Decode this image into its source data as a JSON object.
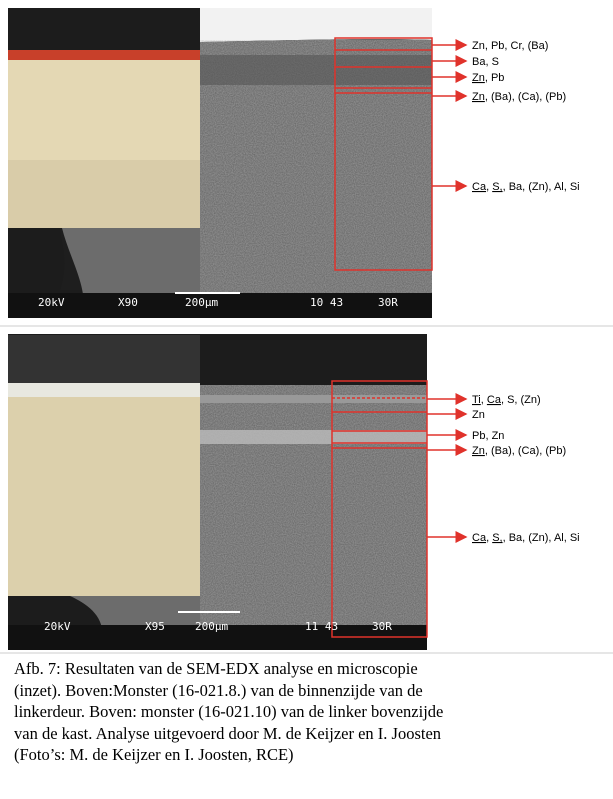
{
  "panels": [
    {
      "scale": {
        "kv": "20kV",
        "mag": "X90",
        "bar": "200µm",
        "id": "10 43",
        "sig": "30R"
      },
      "labels": [
        [
          {
            "text": "Zn, Pb, Cr, (Ba)"
          }
        ],
        [
          {
            "text": "Ba, S"
          }
        ],
        [
          {
            "text": "Zn",
            "u": true
          },
          {
            "text": ", Pb"
          }
        ],
        [
          {
            "text": "Zn",
            "u": true
          },
          {
            "text": ", (Ba), (Ca), (Pb)"
          }
        ],
        [
          {
            "text": "Ca",
            "u": true
          },
          {
            "text": ", "
          },
          {
            "text": "S,",
            "u": true
          },
          {
            "text": ", Ba, (Zn), Al, Si"
          }
        ]
      ]
    },
    {
      "scale": {
        "kv": "20kV",
        "mag": "X95",
        "bar": "200µm",
        "id": "11 43",
        "sig": "30R"
      },
      "labels": [
        [
          {
            "text": "Ti",
            "u": true
          },
          {
            "text": ", "
          },
          {
            "text": "Ca",
            "u": true
          },
          {
            "text": ", S, (Zn)"
          }
        ],
        [
          {
            "text": "Zn"
          }
        ],
        [
          {
            "text": "Pb, Zn"
          }
        ],
        [
          {
            "text": "Zn",
            "u": true
          },
          {
            "text": ", (Ba), (Ca), (Pb)"
          }
        ],
        [
          {
            "text": "Ca",
            "u": true
          },
          {
            "text": ", "
          },
          {
            "text": "S,",
            "u": true
          },
          {
            "text": ", Ba, (Zn), Al, Si"
          }
        ]
      ]
    }
  ],
  "caption": [
    "Afb. 7: Resultaten van de SEM-EDX analyse en microscopie",
    "(inzet). Boven:Monster (16-021.8.) van de binnenzijde van de",
    "linkerdeur. Boven: monster (16-021.10) van de linker bovenzijde",
    "van de kast. Analyse uitgevoerd door M. de Keijzer en I. Joosten",
    "(Foto’s: M. de Keijzer en I. Joosten, RCE)"
  ]
}
